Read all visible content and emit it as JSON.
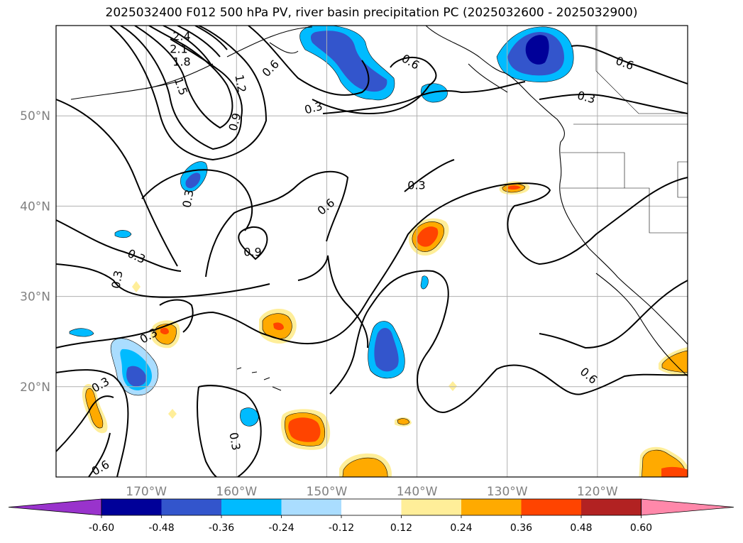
{
  "title": "2025032400 F012 500 hPa PV, river basin precipitation PC (2025032600 - 2025032900)",
  "map": {
    "lon_range": [
      -180,
      -110
    ],
    "lat_range": [
      10,
      60
    ],
    "gridlines": true,
    "lat_ticks": [
      {
        "value": 50,
        "label": "50°N"
      },
      {
        "value": 40,
        "label": "40°N"
      },
      {
        "value": 30,
        "label": "30°N"
      },
      {
        "value": 20,
        "label": "20°N"
      }
    ],
    "lon_ticks": [
      {
        "value": -170,
        "label": "170°W"
      },
      {
        "value": -160,
        "label": "160°W"
      },
      {
        "value": -150,
        "label": "150°W"
      },
      {
        "value": -140,
        "label": "140°W"
      },
      {
        "value": -130,
        "label": "130°W"
      },
      {
        "value": -120,
        "label": "120°W"
      }
    ],
    "contour_labels": [
      "2.4",
      "2.1",
      "1.8",
      "1.5",
      "1.2",
      "0.9",
      "0.6",
      "0.3",
      "0.3",
      "0.6",
      "0.6",
      "0.3",
      "0.6",
      "0.9",
      "0.3",
      "0.3",
      "0.3",
      "0.3",
      "0.3",
      "0.6",
      "0.3",
      "0.6"
    ]
  },
  "colorbar": {
    "levels": [
      "-0.60",
      "-0.48",
      "-0.36",
      "-0.24",
      "-0.12",
      "0.12",
      "0.24",
      "0.36",
      "0.48",
      "0.60"
    ],
    "under_color": "#9933cc",
    "colors": [
      "#000099",
      "#3355cc",
      "#00bbff",
      "#aaddff",
      "#ffffff",
      "#ffee99",
      "#ffaa00",
      "#ff4400",
      "#b22222"
    ],
    "over_color": "#ff88aa"
  },
  "palette": {
    "neg_strong": "#000099",
    "neg_mid": "#3355cc",
    "neg_light": "#00bbff",
    "neg_pale": "#aaddff",
    "pos_pale": "#ffee99",
    "pos_mid": "#ffaa00",
    "pos_strong": "#ff4400"
  }
}
